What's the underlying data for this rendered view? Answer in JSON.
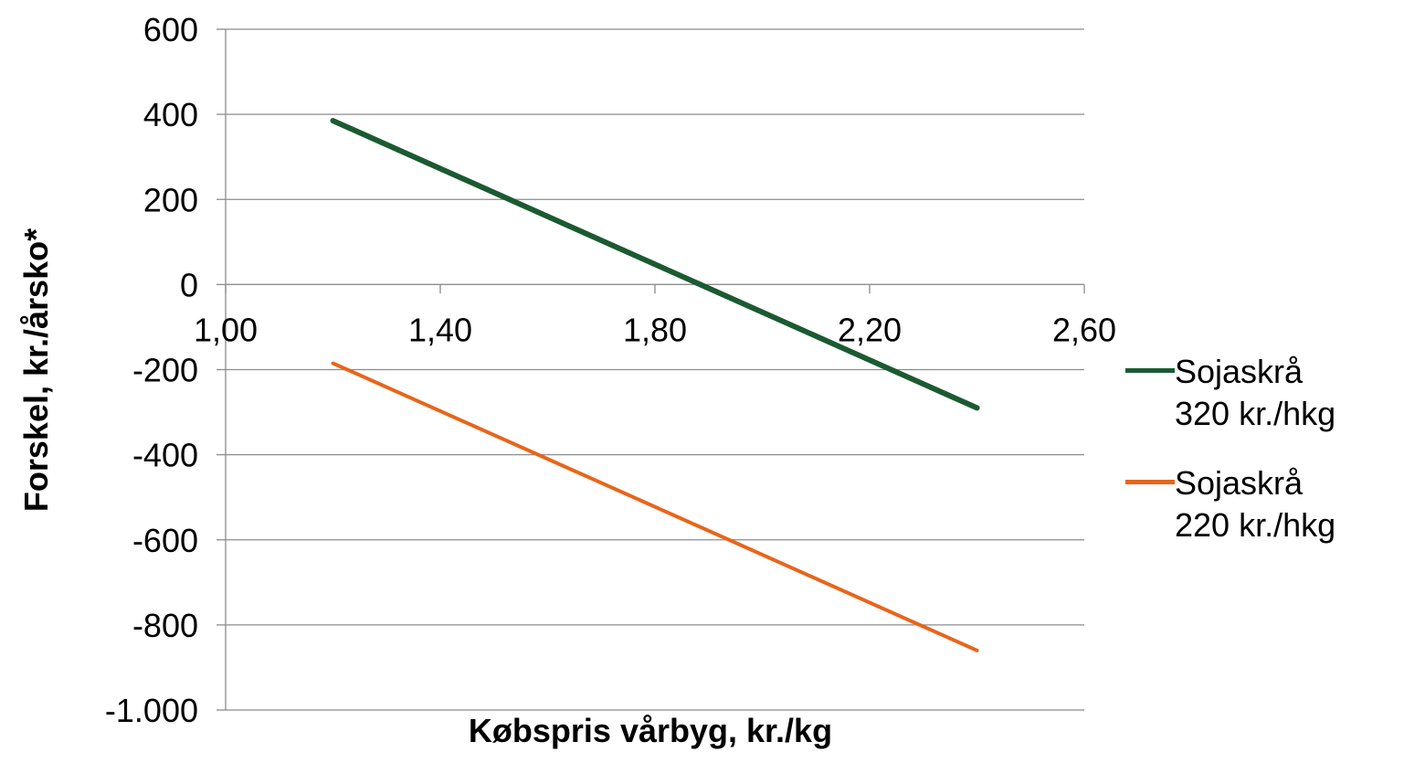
{
  "chart_data": {
    "type": "line",
    "xlabel": "Købspris vårbyg, kr./kg",
    "ylabel": "Forskel, kr./årsko*",
    "x": [
      1.2,
      2.4
    ],
    "series": [
      {
        "name": "Sojaskrå 320 kr./hkg",
        "color": "#1b5a32",
        "values": [
          385,
          -290
        ]
      },
      {
        "name": "Sojaskrå 220 kr./hkg",
        "color": "#e8651a",
        "values": [
          -185,
          -860
        ]
      }
    ],
    "xlim": [
      1.0,
      2.6
    ],
    "xticks": [
      {
        "value": 1.0,
        "label": "1,00"
      },
      {
        "value": 1.4,
        "label": "1,40"
      },
      {
        "value": 1.8,
        "label": "1,80"
      },
      {
        "value": 2.2,
        "label": "2,20"
      },
      {
        "value": 2.6,
        "label": "2,60"
      }
    ],
    "ylim": [
      -1000,
      600
    ],
    "yticks": [
      600,
      400,
      200,
      0,
      -200,
      -400,
      -600,
      -800,
      {
        "value": -1000,
        "label": "-1.000"
      }
    ],
    "grid": true,
    "legend": "right"
  }
}
